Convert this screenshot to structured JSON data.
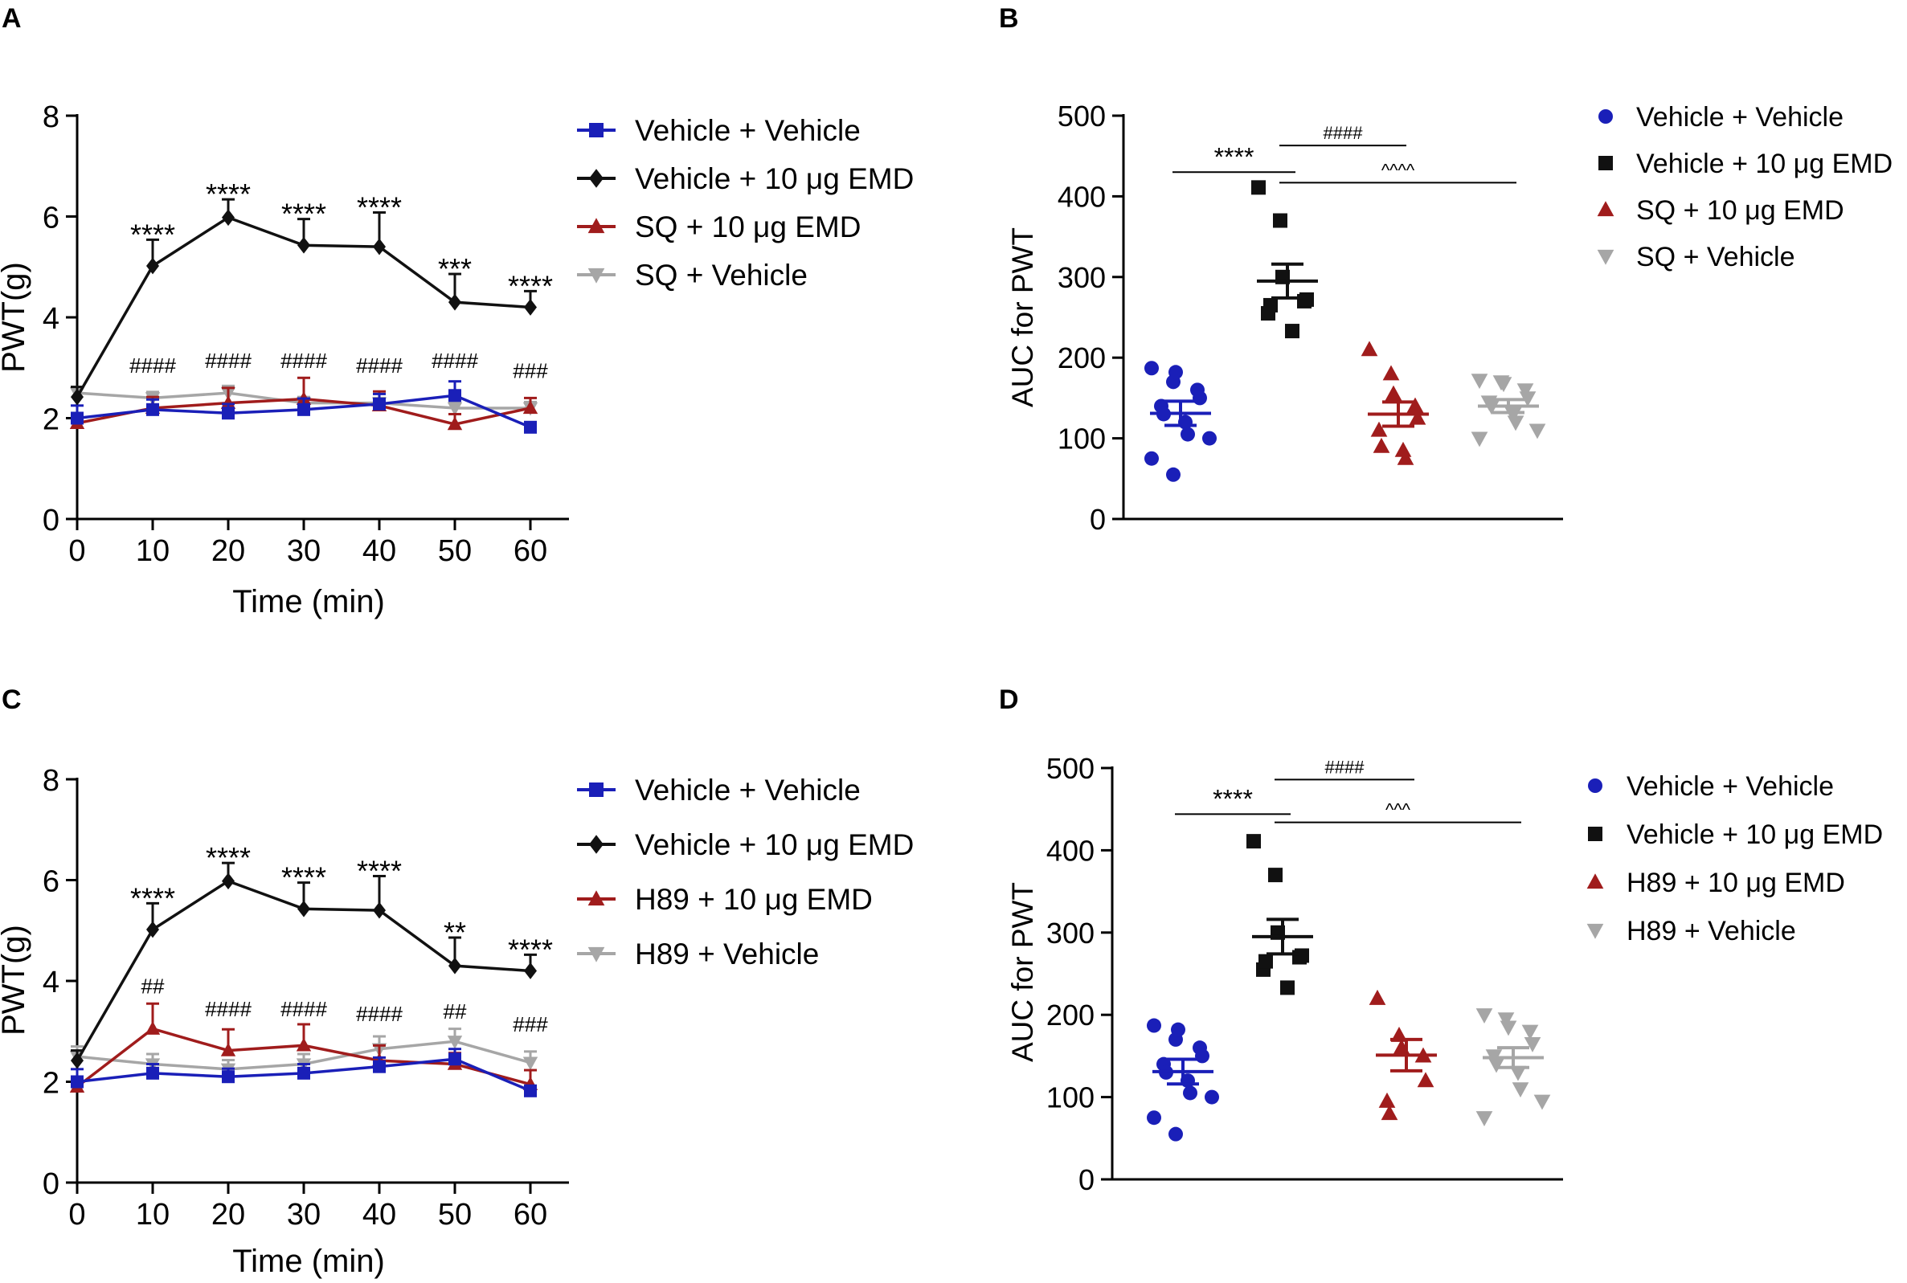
{
  "chart_data": [
    {
      "panel": "A",
      "type": "line",
      "xlabel": "Time (min)",
      "ylabel": "PWT(g)",
      "x": [
        0,
        10,
        20,
        30,
        40,
        50,
        60
      ],
      "xlim": [
        0,
        65
      ],
      "ylim": [
        0,
        8
      ],
      "yticks": [
        0,
        2,
        4,
        6,
        8
      ],
      "series": [
        {
          "name": "Vehicle + Vehicle",
          "marker": "square",
          "color": "#1a1fb8",
          "values": [
            2.0,
            2.17,
            2.1,
            2.17,
            2.28,
            2.45,
            1.82
          ],
          "err": [
            0.25,
            0.2,
            0.18,
            0.22,
            0.2,
            0.28,
            0.1
          ]
        },
        {
          "name": "Vehicle + 10 μg EMD",
          "marker": "diamond",
          "color": "#111111",
          "values": [
            2.42,
            5.02,
            5.98,
            5.43,
            5.4,
            4.3,
            4.2
          ],
          "err": [
            0.2,
            0.52,
            0.36,
            0.52,
            0.68,
            0.56,
            0.32
          ]
        },
        {
          "name": "SQ + 10 μg EMD",
          "marker": "triangle-up",
          "color": "#a01c1c",
          "values": [
            1.9,
            2.2,
            2.3,
            2.38,
            2.25,
            1.88,
            2.2
          ],
          "err": [
            0.18,
            0.22,
            0.3,
            0.42,
            0.28,
            0.2,
            0.2
          ]
        },
        {
          "name": "SQ + Vehicle",
          "marker": "triangle-down",
          "color": "#a6a6a6",
          "values": [
            2.5,
            2.4,
            2.5,
            2.3,
            2.3,
            2.2,
            2.2
          ],
          "err": [
            0.12,
            0.12,
            0.14,
            0.12,
            0.1,
            0.12,
            0.12
          ]
        }
      ],
      "annotations": [
        {
          "x": 10,
          "y": 5.02,
          "err": 0.52,
          "text": "****"
        },
        {
          "x": 20,
          "y": 5.98,
          "err": 0.36,
          "text": "****"
        },
        {
          "x": 30,
          "y": 5.43,
          "err": 0.52,
          "text": "****"
        },
        {
          "x": 40,
          "y": 5.4,
          "err": 0.68,
          "text": "****"
        },
        {
          "x": 50,
          "y": 4.3,
          "err": 0.56,
          "text": "***"
        },
        {
          "x": 60,
          "y": 4.2,
          "err": 0.32,
          "text": "****"
        },
        {
          "x": 10,
          "y": 2.9,
          "text": "####"
        },
        {
          "x": 20,
          "y": 3.0,
          "text": "####"
        },
        {
          "x": 30,
          "y": 3.0,
          "text": "####"
        },
        {
          "x": 40,
          "y": 2.9,
          "text": "####"
        },
        {
          "x": 50,
          "y": 3.0,
          "text": "####"
        },
        {
          "x": 60,
          "y": 2.8,
          "text": "###"
        }
      ]
    },
    {
      "panel": "B",
      "type": "scatter",
      "ylabel": "AUC for PWT",
      "ylim": [
        0,
        500
      ],
      "yticks": [
        0,
        100,
        200,
        300,
        400,
        500
      ],
      "groups": [
        {
          "name": "Vehicle + Vehicle",
          "marker": "circle",
          "color": "#1a1fb8",
          "mean": 131,
          "sem": 15,
          "points": [
            187,
            170,
            182,
            160,
            150,
            140,
            130,
            120,
            105,
            100,
            75,
            55
          ]
        },
        {
          "name": "Vehicle + 10 μg EMD",
          "marker": "square",
          "color": "#111111",
          "mean": 295,
          "sem": 21,
          "points": [
            411,
            370,
            300,
            270,
            272,
            255,
            265,
            233
          ]
        },
        {
          "name": "SQ + 10 μg EMD",
          "marker": "triangle-up",
          "color": "#a01c1c",
          "mean": 130,
          "sem": 15,
          "points": [
            210,
            180,
            155,
            140,
            125,
            110,
            90,
            85,
            75
          ]
        },
        {
          "name": "SQ + Vehicle",
          "marker": "triangle-down",
          "color": "#a6a6a6",
          "mean": 140,
          "sem": 8,
          "points": [
            172,
            170,
            168,
            160,
            150,
            145,
            140,
            130,
            120,
            110,
            100
          ]
        }
      ],
      "brackets": [
        {
          "from": 0,
          "to": 1,
          "y": 430,
          "text": "****"
        },
        {
          "from": 1,
          "to": 2,
          "y": 463,
          "text": "####"
        },
        {
          "from": 1,
          "to": 3,
          "y": 417,
          "text": "^^^^"
        }
      ]
    },
    {
      "panel": "C",
      "type": "line",
      "xlabel": "Time (min)",
      "ylabel": "PWT(g)",
      "x": [
        0,
        10,
        20,
        30,
        40,
        50,
        60
      ],
      "xlim": [
        0,
        65
      ],
      "ylim": [
        0,
        8
      ],
      "yticks": [
        0,
        2,
        4,
        6,
        8
      ],
      "series": [
        {
          "name": "Vehicle + Vehicle",
          "marker": "square",
          "color": "#1a1fb8",
          "values": [
            2.0,
            2.17,
            2.1,
            2.17,
            2.3,
            2.45,
            1.82
          ],
          "err": [
            0.25,
            0.18,
            0.16,
            0.18,
            0.18,
            0.2,
            0.1
          ]
        },
        {
          "name": "Vehicle + 10 μg EMD",
          "marker": "diamond",
          "color": "#111111",
          "values": [
            2.42,
            5.02,
            5.98,
            5.43,
            5.4,
            4.3,
            4.2
          ],
          "err": [
            0.2,
            0.52,
            0.36,
            0.52,
            0.68,
            0.56,
            0.32
          ]
        },
        {
          "name": "H89 + 10 μg EMD",
          "marker": "triangle-up",
          "color": "#a01c1c",
          "values": [
            1.9,
            3.05,
            2.62,
            2.72,
            2.42,
            2.35,
            1.95
          ],
          "err": [
            0.15,
            0.5,
            0.42,
            0.42,
            0.3,
            0.22,
            0.28
          ]
        },
        {
          "name": "H89 + Vehicle",
          "marker": "triangle-down",
          "color": "#a6a6a6",
          "values": [
            2.5,
            2.35,
            2.25,
            2.35,
            2.65,
            2.8,
            2.38
          ],
          "err": [
            0.2,
            0.2,
            0.18,
            0.2,
            0.25,
            0.25,
            0.22
          ]
        }
      ],
      "annotations": [
        {
          "x": 10,
          "y": 5.02,
          "err": 0.52,
          "text": "****"
        },
        {
          "x": 20,
          "y": 5.98,
          "err": 0.36,
          "text": "****"
        },
        {
          "x": 30,
          "y": 5.43,
          "err": 0.52,
          "text": "****"
        },
        {
          "x": 40,
          "y": 5.4,
          "err": 0.68,
          "text": "****"
        },
        {
          "x": 50,
          "y": 4.3,
          "err": 0.56,
          "text": "**"
        },
        {
          "x": 60,
          "y": 4.2,
          "err": 0.32,
          "text": "****"
        },
        {
          "x": 10,
          "y": 3.75,
          "text": "##"
        },
        {
          "x": 20,
          "y": 3.3,
          "text": "####"
        },
        {
          "x": 30,
          "y": 3.3,
          "text": "####"
        },
        {
          "x": 40,
          "y": 3.2,
          "text": "####"
        },
        {
          "x": 50,
          "y": 3.25,
          "text": "##"
        },
        {
          "x": 60,
          "y": 3.0,
          "text": "###"
        }
      ]
    },
    {
      "panel": "D",
      "type": "scatter",
      "ylabel": "AUC for PWT",
      "ylim": [
        0,
        500
      ],
      "yticks": [
        0,
        100,
        200,
        300,
        400,
        500
      ],
      "groups": [
        {
          "name": "Vehicle + Vehicle",
          "marker": "circle",
          "color": "#1a1fb8",
          "mean": 131,
          "sem": 15,
          "points": [
            187,
            170,
            182,
            160,
            150,
            140,
            130,
            120,
            105,
            100,
            75,
            55
          ]
        },
        {
          "name": "Vehicle + 10 μg EMD",
          "marker": "square",
          "color": "#111111",
          "mean": 295,
          "sem": 21,
          "points": [
            411,
            370,
            300,
            270,
            272,
            255,
            265,
            233
          ]
        },
        {
          "name": "H89 + 10 μg EMD",
          "marker": "triangle-up",
          "color": "#a01c1c",
          "mean": 151,
          "sem": 19,
          "points": [
            220,
            175,
            160,
            150,
            120,
            95,
            80
          ]
        },
        {
          "name": "H89 + Vehicle",
          "marker": "triangle-down",
          "color": "#a6a6a6",
          "mean": 148,
          "sem": 12,
          "points": [
            200,
            195,
            185,
            180,
            165,
            150,
            140,
            130,
            110,
            95,
            75
          ]
        }
      ],
      "brackets": [
        {
          "from": 0,
          "to": 1,
          "y": 444,
          "text": "****"
        },
        {
          "from": 1,
          "to": 2,
          "y": 486,
          "text": "####"
        },
        {
          "from": 1,
          "to": 3,
          "y": 434,
          "text": "^^^"
        }
      ]
    }
  ]
}
